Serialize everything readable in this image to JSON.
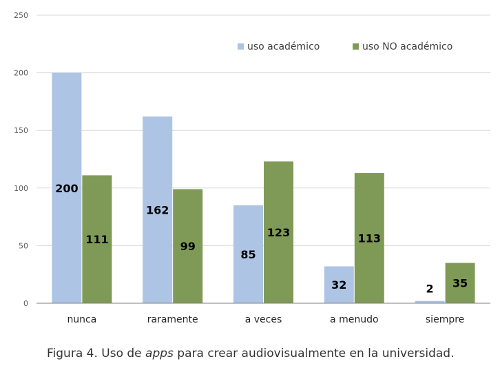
{
  "chart_data": {
    "type": "bar",
    "categories": [
      "nunca",
      "raramente",
      "a veces",
      "a menudo",
      "siempre"
    ],
    "series": [
      {
        "name": "uso académico",
        "values": [
          200,
          162,
          85,
          32,
          2
        ],
        "color": "#aec4e5"
      },
      {
        "name": "uso NO académico",
        "values": [
          111,
          99,
          123,
          113,
          35
        ],
        "color": "#7f9a56"
      }
    ],
    "ylim": [
      0,
      250
    ],
    "yticks": [
      0,
      50,
      100,
      150,
      200,
      250
    ],
    "grid": true,
    "legend": "top-right",
    "data_labels": true
  },
  "caption": {
    "prefix": "Figura 4. Uso de ",
    "emphasis": "apps",
    "suffix": " para crear audiovisualmente en la universidad."
  }
}
